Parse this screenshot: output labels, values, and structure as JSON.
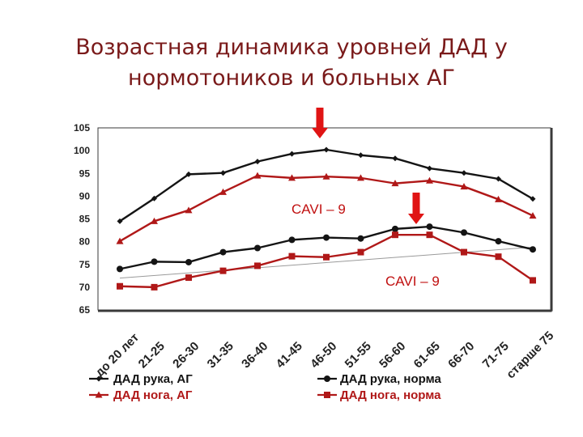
{
  "title": [
    "Возрастная динамика уровней ДАД у",
    "нормотоников и больных АГ"
  ],
  "colors": {
    "title": "#7a1a1a",
    "black_series": "#141414",
    "red_series": "#b01818",
    "arrow": "#e01414",
    "annotation": "#c01010",
    "frame": "#3a3a3a"
  },
  "icons": [
    "arrow-down-icon",
    "arrow-down-icon"
  ],
  "chart_data": {
    "type": "line",
    "title": "",
    "xlabel": "",
    "ylabel": "",
    "ylim": [
      65,
      105
    ],
    "yticks": [
      105,
      100,
      95,
      90,
      85,
      80,
      75,
      70,
      65
    ],
    "categories": [
      "до 20 лет",
      "21-25",
      "26-30",
      "31-35",
      "36-40",
      "41-45",
      "46-50",
      "51-55",
      "56-60",
      "61-65",
      "66-70",
      "71-75",
      "старше 75"
    ],
    "grid": false,
    "legend_position": "bottom",
    "series": [
      {
        "name": "ДАД рука, АГ",
        "color": "#141414",
        "marker": "diamond",
        "values": [
          84.5,
          89.5,
          94.8,
          95.1,
          97.6,
          99.3,
          100.2,
          99.0,
          98.3,
          96.1,
          95.1,
          93.8,
          89.4
        ]
      },
      {
        "name": "ДАД рука, норма",
        "color": "#141414",
        "marker": "circle",
        "values": [
          74.0,
          75.6,
          75.5,
          77.7,
          78.6,
          80.4,
          80.9,
          80.7,
          82.8,
          83.3,
          82.0,
          80.1,
          78.3
        ]
      },
      {
        "name": "ДАД нога, АГ",
        "color": "#b01818",
        "marker": "triangle",
        "values": [
          80.1,
          84.5,
          86.9,
          90.9,
          94.5,
          94.0,
          94.3,
          94.0,
          92.8,
          93.4,
          92.1,
          89.3,
          85.7
        ]
      },
      {
        "name": "ДАД нога, норма",
        "color": "#b01818",
        "marker": "square",
        "values": [
          70.2,
          70.0,
          72.1,
          73.6,
          74.7,
          76.8,
          76.6,
          77.7,
          81.5,
          81.5,
          77.7,
          76.7,
          71.5
        ]
      }
    ],
    "trendlines": [
      {
        "from": [
          0,
          72.0
        ],
        "to": [
          12,
          78.8
        ]
      }
    ],
    "annotations": [
      {
        "text": "CAVI – 9",
        "near_category": "46-50",
        "arrow_index": 6
      },
      {
        "text": "CAVI – 9",
        "near_category": "61-65",
        "arrow_index": 9
      }
    ]
  }
}
